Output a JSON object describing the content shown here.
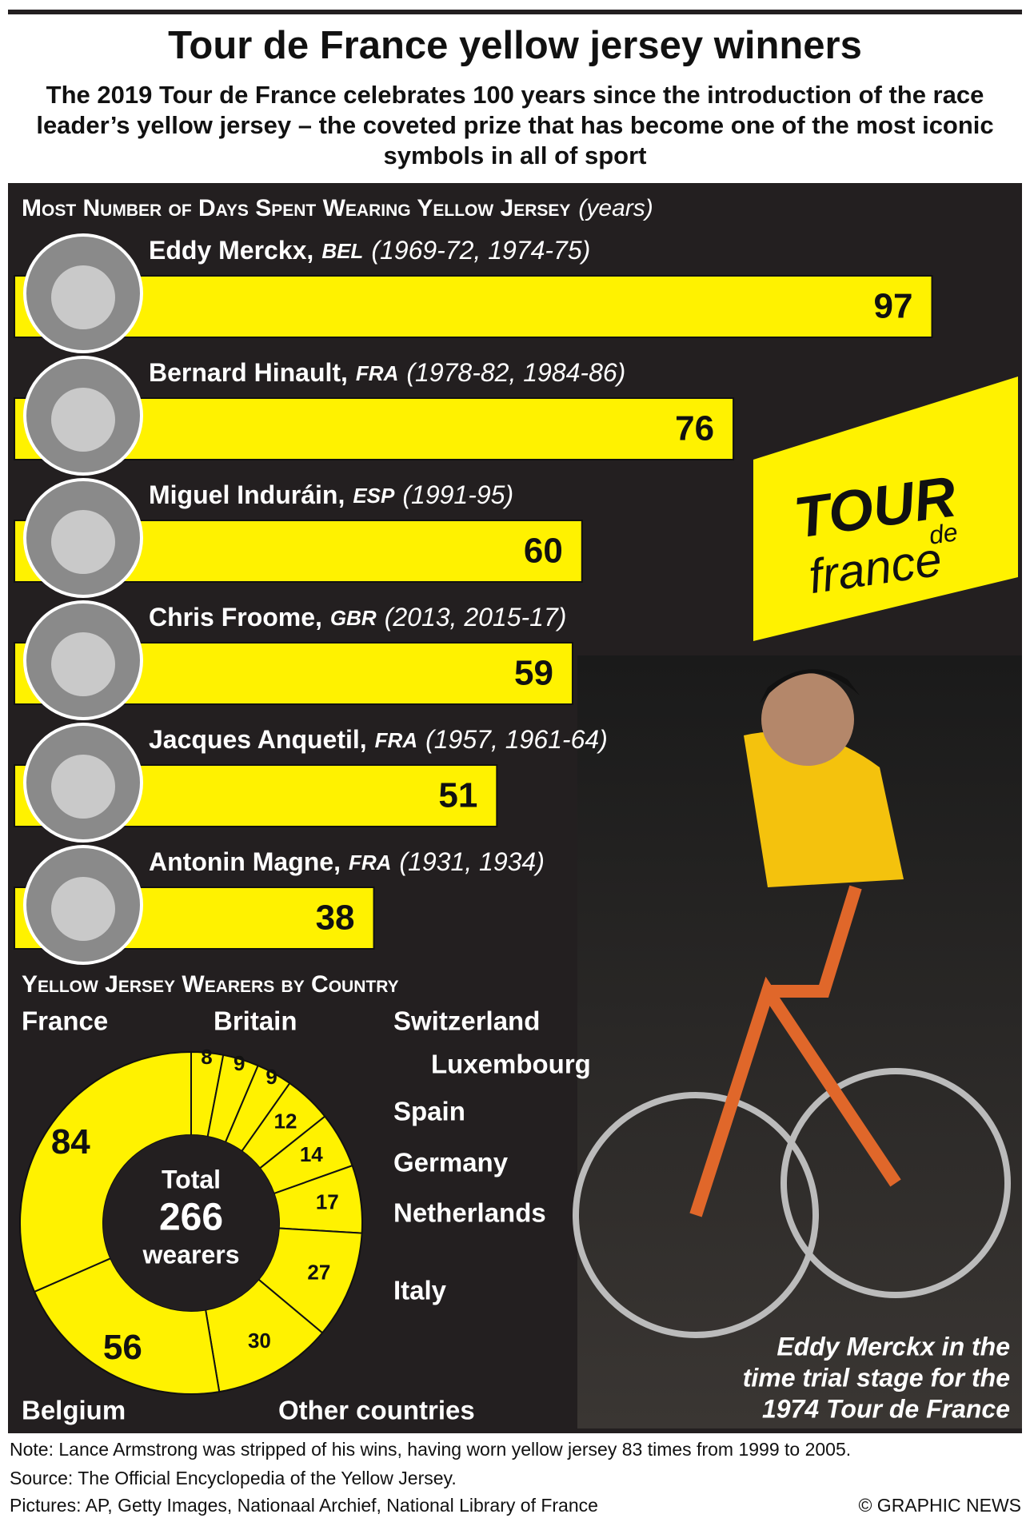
{
  "header": {
    "title": "Tour de France yellow jersey winners",
    "subtitle": "The 2019 Tour de France celebrates 100 years since the introduction of the race leader’s yellow jersey – the coveted prize that has become one of the most iconic symbols in all of sport"
  },
  "chart_data": [
    {
      "type": "bar",
      "title": "Most Number of Days Spent Wearing Yellow Jersey",
      "subtitle": "(years)",
      "color": "#fff200",
      "categories": [
        "Eddy Merckx,",
        "Bernard Hinault,",
        "Miguel Induráin,",
        "Chris Froome,",
        "Jacques Anquetil,",
        "Antonin Magne,"
      ],
      "countries": [
        "BEL",
        "FRA",
        "ESP",
        "GBR",
        "FRA",
        "FRA"
      ],
      "years": [
        "(1969-72, 1974-75)",
        "(1978-82, 1984-86)",
        "(1991-95)",
        "(2013, 2015-17)",
        "(1957, 1961-64)",
        "(1931, 1934)"
      ],
      "values": [
        97,
        76,
        60,
        59,
        51,
        38
      ]
    },
    {
      "type": "donut",
      "title": "Yellow Jersey Wearers by Country",
      "color": "#fff200",
      "categories": [
        "Britain",
        "Switzerland",
        "Luxembourg",
        "Spain",
        "Germany",
        "Netherlands",
        "Italy",
        "Other countries",
        "Belgium",
        "France"
      ],
      "values": [
        8,
        9,
        9,
        12,
        14,
        17,
        27,
        30,
        56,
        84
      ],
      "center": {
        "top": "Total",
        "total": 266,
        "bottom": "wearers"
      }
    }
  ],
  "logo": {
    "word1": "TOUR",
    "word2": "de",
    "word3": "france"
  },
  "caption": [
    "Eddy Merckx in the",
    "time trial stage for the",
    "1974 Tour de France"
  ],
  "footer": {
    "note": "Note: Lance Armstrong was stripped of his wins, having worn yellow jersey 83 times from 1999 to 2005.",
    "source": "Source: The Official Encyclopedia of the Yellow Jersey.",
    "pictures": "Pictures: AP, Getty Images, Nationaal Archief, National Library of France",
    "credit": "© GRAPHIC NEWS"
  }
}
